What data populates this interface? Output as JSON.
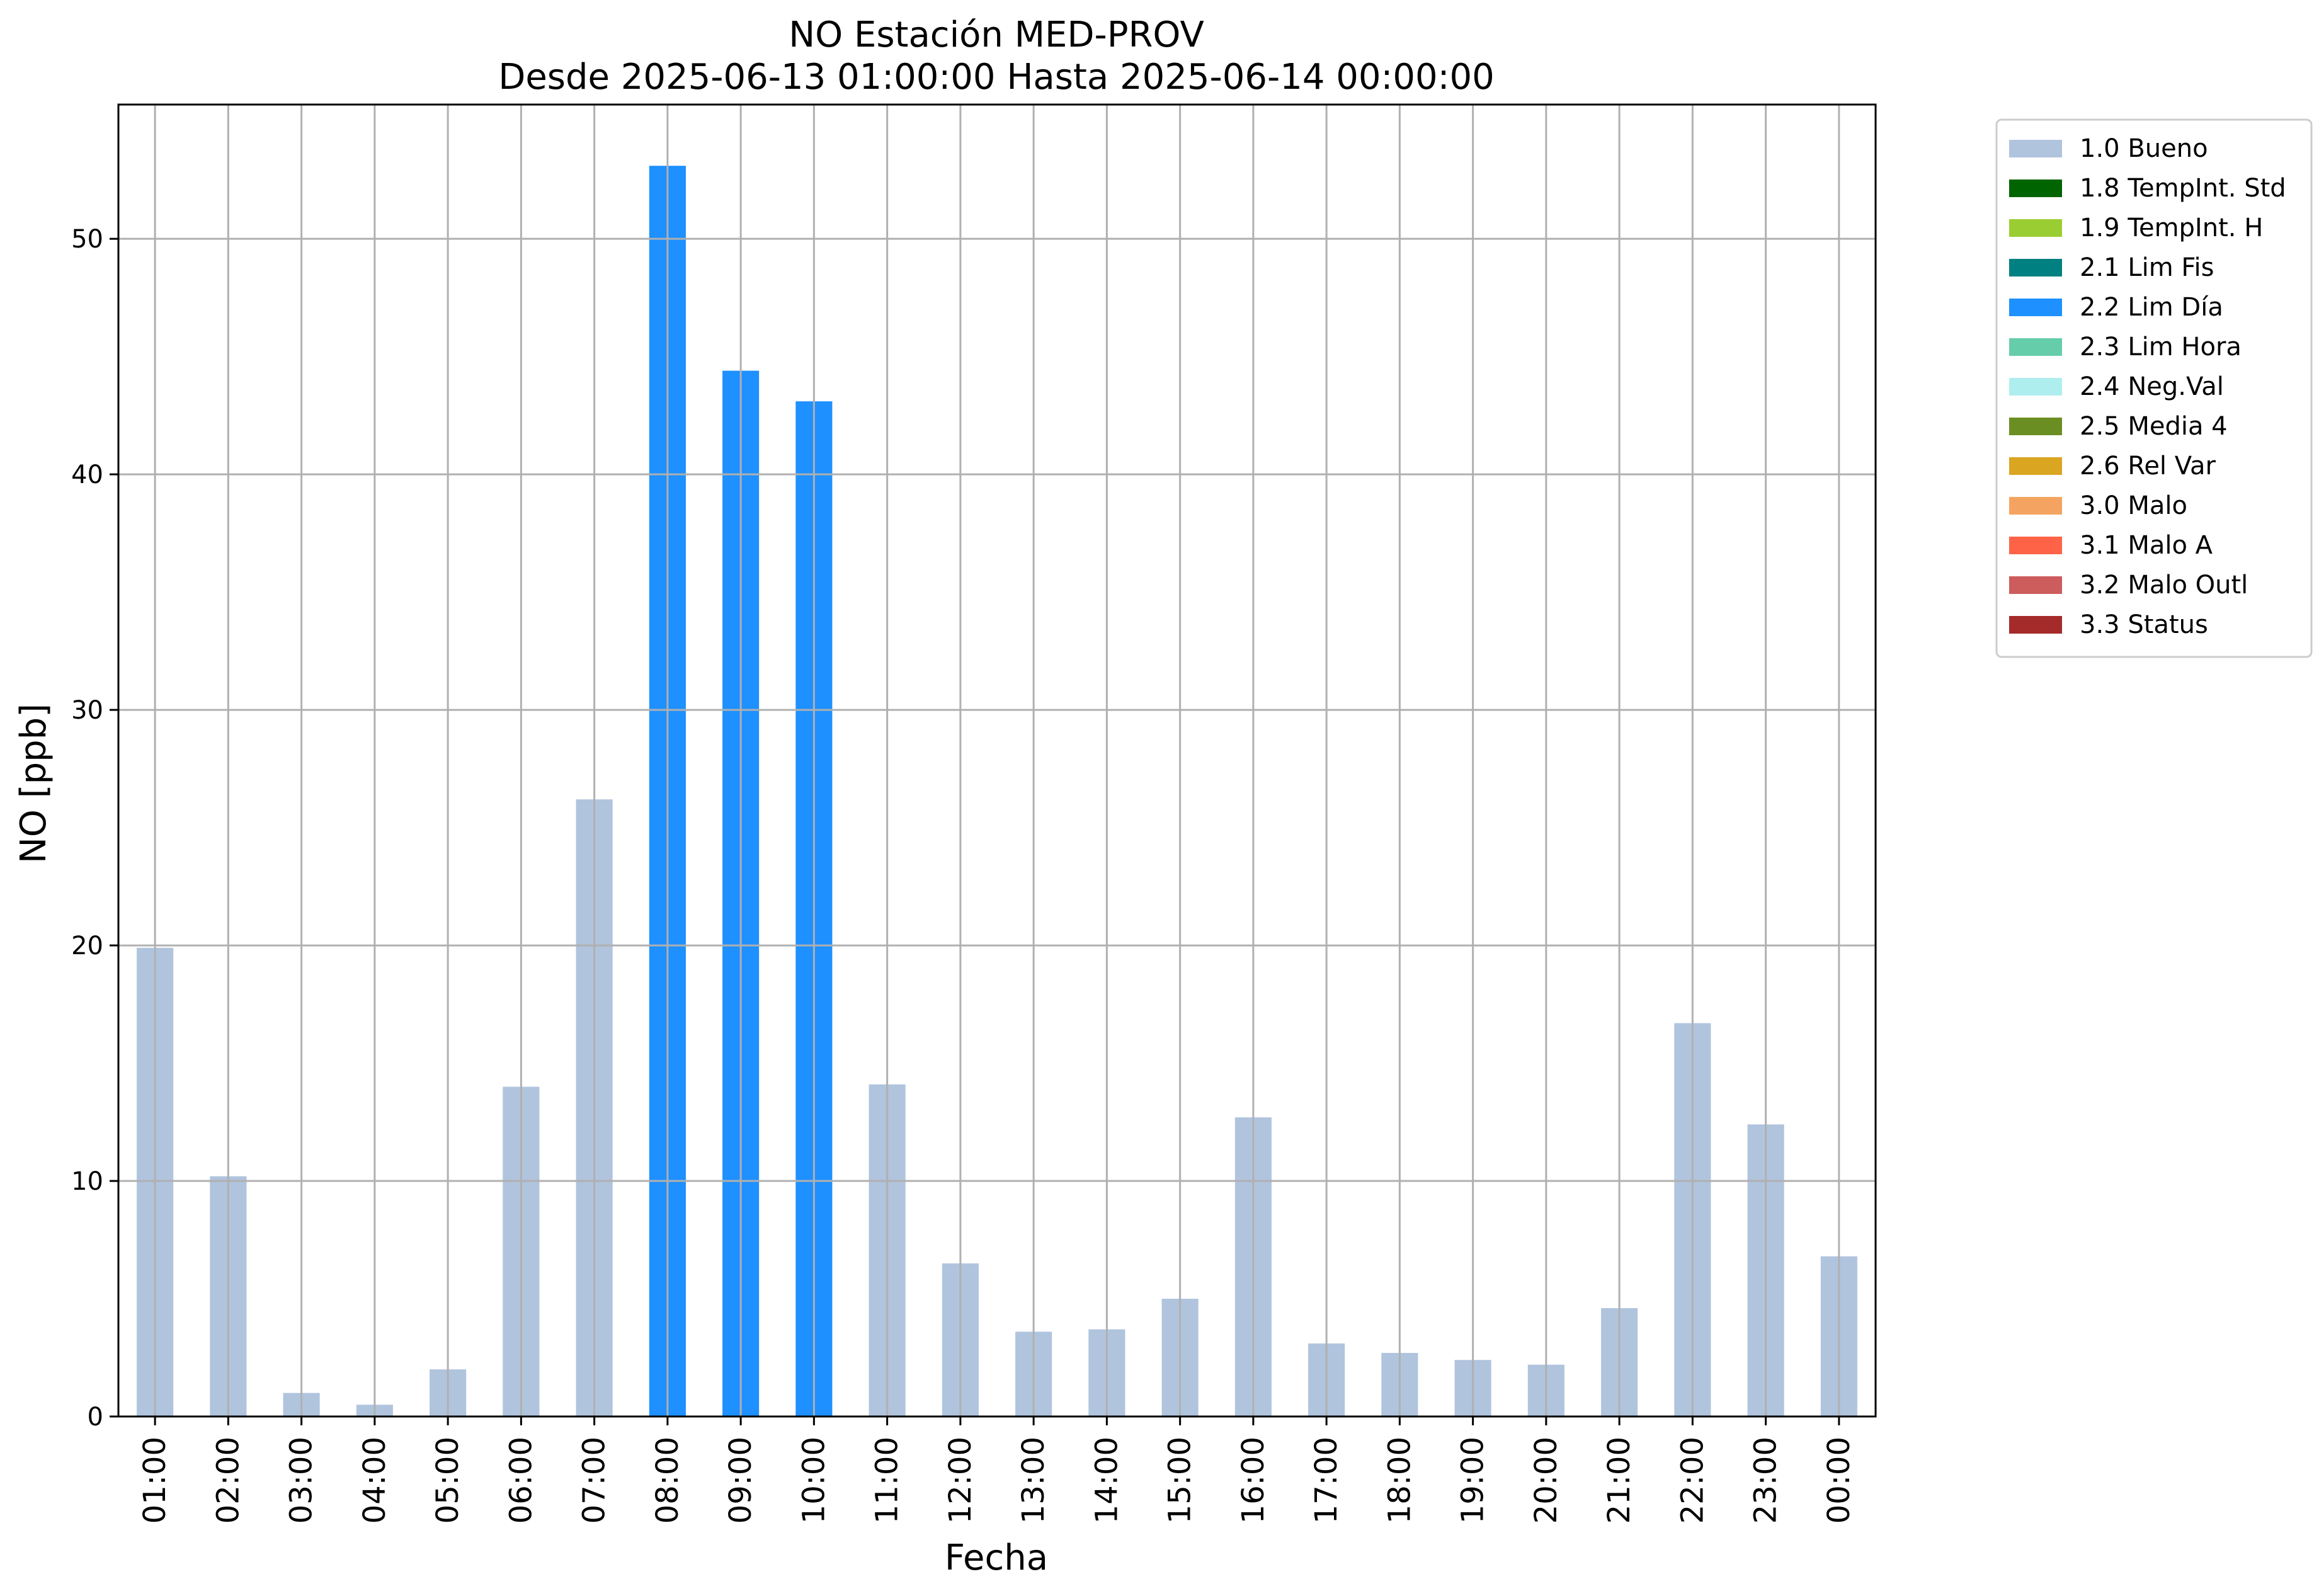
{
  "chart_data": {
    "type": "bar",
    "title": "NO Estación MED-PROV",
    "subtitle": "Desde 2025-06-13 01:00:00 Hasta 2025-06-14 00:00:00",
    "xlabel": "Fecha",
    "ylabel": "NO [ppb]",
    "ylim": [
      0,
      55.7
    ],
    "yticks": [
      0,
      10,
      20,
      30,
      40,
      50
    ],
    "grid": true,
    "legend_position": "outside-top-right",
    "categories": [
      "01:00",
      "02:00",
      "03:00",
      "04:00",
      "05:00",
      "06:00",
      "07:00",
      "08:00",
      "09:00",
      "10:00",
      "11:00",
      "12:00",
      "13:00",
      "14:00",
      "15:00",
      "16:00",
      "17:00",
      "18:00",
      "19:00",
      "20:00",
      "21:00",
      "22:00",
      "23:00",
      "00:00"
    ],
    "values": [
      19.9,
      10.2,
      1.0,
      0.5,
      2.0,
      14.0,
      26.2,
      53.1,
      44.4,
      43.1,
      14.1,
      6.5,
      3.6,
      3.7,
      5.0,
      12.7,
      3.1,
      2.7,
      2.4,
      2.2,
      4.6,
      16.7,
      12.4,
      6.8
    ],
    "flags": [
      "1.0 Bueno",
      "1.0 Bueno",
      "1.0 Bueno",
      "1.0 Bueno",
      "1.0 Bueno",
      "1.0 Bueno",
      "1.0 Bueno",
      "2.2 Lim Día",
      "2.2 Lim Día",
      "2.2 Lim Día",
      "1.0 Bueno",
      "1.0 Bueno",
      "1.0 Bueno",
      "1.0 Bueno",
      "1.0 Bueno",
      "1.0 Bueno",
      "1.0 Bueno",
      "1.0 Bueno",
      "1.0 Bueno",
      "1.0 Bueno",
      "1.0 Bueno",
      "1.0 Bueno",
      "1.0 Bueno",
      "1.0 Bueno"
    ],
    "legend": [
      {
        "label": "1.0 Bueno",
        "color": "#b0c4de"
      },
      {
        "label": "1.8 TempInt. Std",
        "color": "#006400"
      },
      {
        "label": "1.9 TempInt. H",
        "color": "#9acd32"
      },
      {
        "label": "2.1 Lim Fis",
        "color": "#008080"
      },
      {
        "label": "2.2 Lim Día",
        "color": "#1e90ff"
      },
      {
        "label": "2.3 Lim Hora",
        "color": "#66cdaa"
      },
      {
        "label": "2.4 Neg.Val",
        "color": "#afeeee"
      },
      {
        "label": "2.5 Media 4",
        "color": "#6b8e23"
      },
      {
        "label": "2.6 Rel Var",
        "color": "#daa520"
      },
      {
        "label": "3.0 Malo",
        "color": "#f4a460"
      },
      {
        "label": "3.1 Malo A",
        "color": "#ff6347"
      },
      {
        "label": "3.2 Malo Outl",
        "color": "#cd5c5c"
      },
      {
        "label": "3.3 Status",
        "color": "#a52a2a"
      }
    ]
  }
}
